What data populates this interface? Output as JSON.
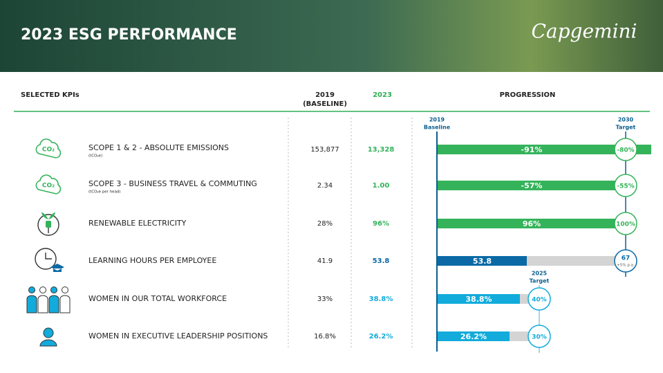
{
  "header": {
    "title": "2023 ESG PERFORMANCE",
    "logo": "Capgemini"
  },
  "table": {
    "columns": {
      "kpi": "SELECTED KPIs",
      "baseline": [
        "2019",
        "(BASELINE)"
      ],
      "current": "2023",
      "progression": "PROGRESSION"
    },
    "markers": {
      "baseline": [
        "2019",
        "Baseline"
      ],
      "target_2030": [
        "2030",
        "Target"
      ],
      "target_2025": [
        "2025",
        "Target"
      ]
    },
    "rows": [
      {
        "icon_text": "CO₂",
        "kpi": "SCOPE 1 & 2 - ABSOLUTE EMISSIONS",
        "unit": "(tCO₂e)",
        "baseline": "153,877",
        "current": "13,328",
        "progress": "-91%",
        "target": "-80%"
      },
      {
        "icon_text": "CO₂",
        "kpi": "SCOPE 3 - BUSINESS TRAVEL & COMMUTING",
        "unit": "(tCO₂e per head)",
        "baseline": "2.34",
        "current": "1.00",
        "progress": "-57%",
        "target": "-55%"
      },
      {
        "kpi": "RENEWABLE ELECTRICITY",
        "baseline": "28%",
        "current": "96%",
        "progress": "96%",
        "target": "100%"
      },
      {
        "kpi": "LEARNING HOURS PER EMPLOYEE",
        "baseline": "41.9",
        "current": "53.8",
        "progress": "53.8",
        "target": "67",
        "target_note": "+5% p.a."
      },
      {
        "kpi": "WOMEN IN OUR TOTAL WORKFORCE",
        "baseline": "33%",
        "current": "38.8%",
        "progress": "38.8%",
        "target": "40%"
      },
      {
        "kpi": "WOMEN IN EXECUTIVE LEADERSHIP POSITIONS",
        "baseline": "16.8%",
        "current": "26.2%",
        "progress": "26.2%",
        "target": "30%"
      }
    ]
  }
}
